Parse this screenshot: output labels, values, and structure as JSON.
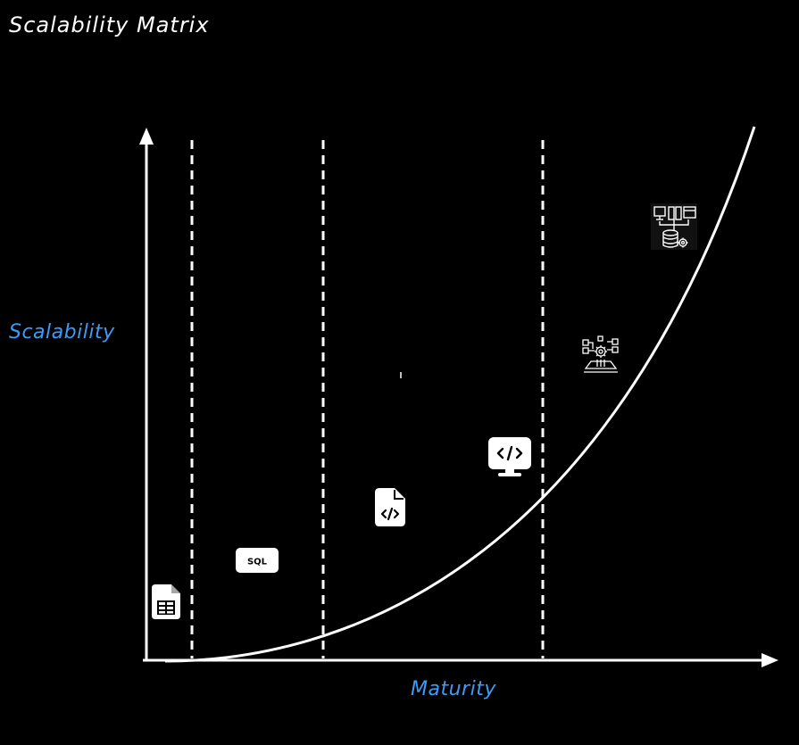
{
  "title": "Scalability Matrix",
  "y_axis_label": "Scalability",
  "x_axis_label": "Maturity",
  "colors": {
    "background": "#000000",
    "foreground": "#ffffff",
    "axis_label": "#3d9bf5"
  },
  "stages": [
    {
      "icon": "spreadsheet-file-icon"
    },
    {
      "icon": "sql-icon",
      "text": "SQL"
    },
    {
      "icon": "code-file-icon"
    },
    {
      "icon": "code-monitor-icon"
    },
    {
      "icon": "data-pipeline-gear-icon"
    },
    {
      "icon": "distributed-servers-database-icon"
    }
  ]
}
